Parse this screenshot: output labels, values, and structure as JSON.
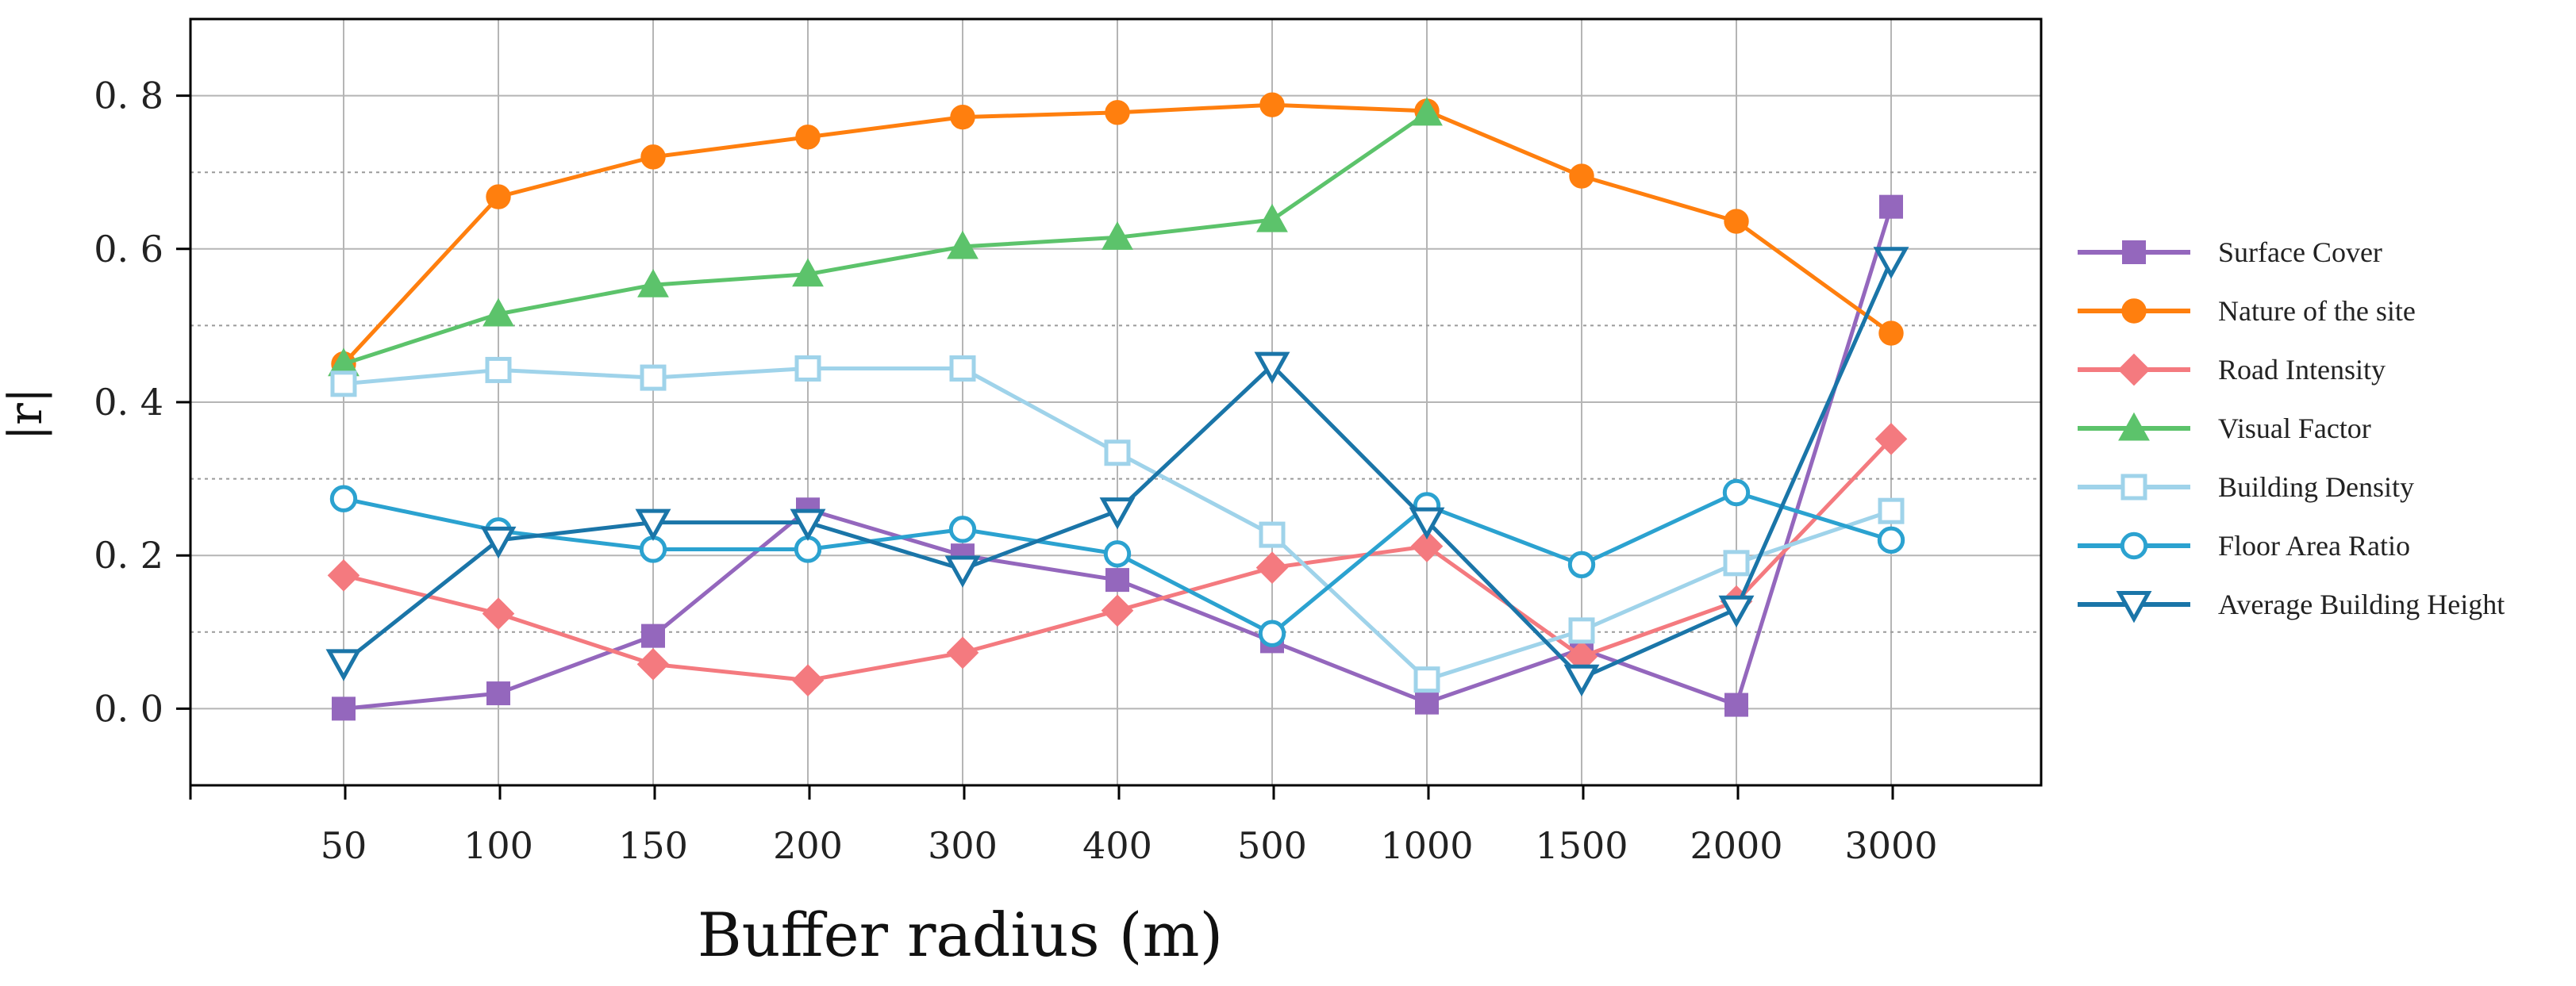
{
  "chart_data": {
    "type": "line",
    "title": "",
    "xlabel": "Buffer radius (m)",
    "ylabel": "|r|",
    "categories": [
      "50",
      "100",
      "150",
      "200",
      "300",
      "400",
      "500",
      "1000",
      "1500",
      "2000",
      "3000"
    ],
    "ylim": [
      -0.1,
      0.9
    ],
    "yticks": [
      0.0,
      0.2,
      0.4,
      0.6,
      0.8
    ],
    "ytick_labels": [
      "0. 0",
      "0. 2",
      "0. 4",
      "0. 6",
      "0. 8"
    ],
    "grid": true,
    "legend_position": "right",
    "series": [
      {
        "name": "Surface Cover",
        "color": "#9467bd",
        "marker": "square-filled",
        "values": [
          0.0,
          0.02,
          0.095,
          0.26,
          0.2,
          0.168,
          0.088,
          0.008,
          0.078,
          0.005,
          0.655
        ]
      },
      {
        "name": "Nature of the site",
        "color": "#ff7f0e",
        "marker": "circle-filled",
        "values": [
          0.45,
          0.668,
          0.72,
          0.746,
          0.772,
          0.778,
          0.788,
          0.78,
          0.695,
          0.636,
          0.49
        ]
      },
      {
        "name": "Road Intensity",
        "color": "#f47a7f",
        "marker": "diamond-filled",
        "values": [
          0.174,
          0.124,
          0.058,
          0.037,
          0.073,
          0.128,
          0.184,
          0.212,
          0.068,
          0.14,
          0.352
        ]
      },
      {
        "name": "Visual Factor",
        "color": "#5cc36b",
        "marker": "triangle-up-filled",
        "values": [
          0.45,
          0.515,
          0.553,
          0.567,
          0.603,
          0.615,
          0.638,
          0.777,
          null,
          null,
          null
        ]
      },
      {
        "name": "Building Density",
        "color": "#9fd3ea",
        "marker": "square-open",
        "values": [
          0.424,
          0.442,
          0.432,
          0.444,
          0.444,
          0.334,
          0.227,
          0.038,
          0.102,
          0.19,
          0.258
        ]
      },
      {
        "name": "Floor Area Ratio",
        "color": "#2ba2d0",
        "marker": "circle-open",
        "values": [
          0.274,
          0.232,
          0.208,
          0.208,
          0.234,
          0.202,
          0.098,
          0.265,
          0.188,
          0.282,
          0.22
        ]
      },
      {
        "name": "Average Building Height",
        "color": "#1a75a8",
        "marker": "triangle-down-open",
        "values": [
          0.06,
          0.22,
          0.243,
          0.243,
          0.182,
          0.258,
          0.448,
          0.245,
          0.04,
          0.13,
          0.585
        ]
      }
    ]
  }
}
